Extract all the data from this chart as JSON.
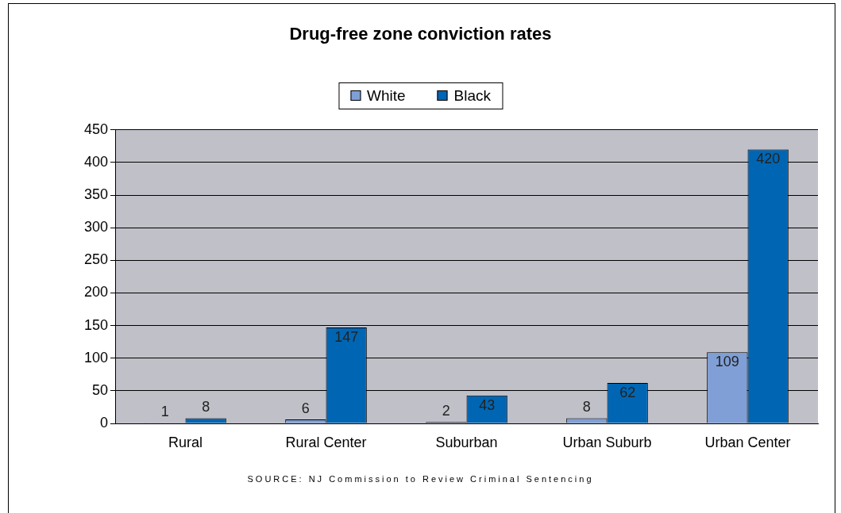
{
  "chart_data": {
    "type": "bar",
    "title": "Drug-free zone conviction rates",
    "categories": [
      "Rural",
      "Rural Center",
      "Suburban",
      "Urban Suburb",
      "Urban Center"
    ],
    "series": [
      {
        "name": "White",
        "color": "#7f9fd6",
        "values": [
          1,
          6,
          2,
          8,
          109
        ]
      },
      {
        "name": "Black",
        "color": "#0066b3",
        "values": [
          8,
          147,
          43,
          62,
          420
        ]
      }
    ],
    "ylim": [
      0,
      450
    ],
    "yticks": [
      0,
      50,
      100,
      150,
      200,
      250,
      300,
      350,
      400,
      450
    ],
    "grid": "y",
    "legend": "top",
    "data_labels": true,
    "annotations": [
      "SOURCE: NJ Commission to Review Criminal Sentencing"
    ]
  }
}
